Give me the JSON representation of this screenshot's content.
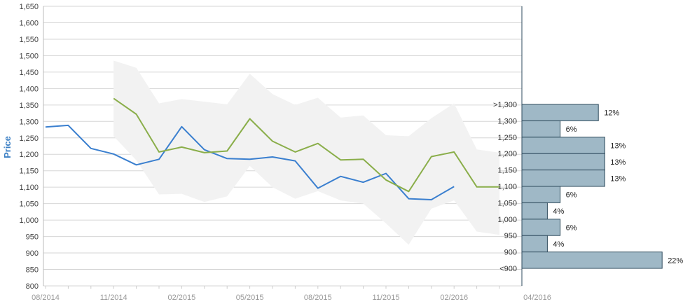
{
  "chart_data": {
    "type": "line",
    "ylabel": "Price",
    "ylim": [
      800,
      1650
    ],
    "y_ticks": [
      "800",
      "850",
      "900",
      "950",
      "1,000",
      "1,050",
      "1,100",
      "1,150",
      "1,200",
      "1,250",
      "1,300",
      "1,350",
      "1,400",
      "1,450",
      "1,500",
      "1,550",
      "1,600",
      "1,650"
    ],
    "x_labels": [
      "08/2014",
      "11/2014",
      "02/2015",
      "05/2015",
      "08/2015",
      "11/2015",
      "02/2016",
      "04/2016"
    ],
    "grid": true,
    "colors": {
      "series_a": "#3a7fcf",
      "series_b": "#8aae4a",
      "band": "#f2f2f2",
      "bars": "#9fb8c6",
      "bar_stroke": "#2e4a5c",
      "grid": "#d6d6d6"
    },
    "series": [
      {
        "color": "#3a7fcf",
        "points": [
          [
            "2014-08",
            1283
          ],
          [
            "2014-09",
            1288
          ],
          [
            "2014-10",
            1218
          ],
          [
            "2014-11",
            1201
          ],
          [
            "2014-12",
            1168
          ],
          [
            "2015-01",
            1185
          ],
          [
            "2015-02",
            1284
          ],
          [
            "2015-03",
            1214
          ],
          [
            "2015-04",
            1187
          ],
          [
            "2015-05",
            1185
          ],
          [
            "2015-06",
            1192
          ],
          [
            "2015-07",
            1180
          ],
          [
            "2015-08",
            1097
          ],
          [
            "2015-09",
            1133
          ],
          [
            "2015-10",
            1115
          ],
          [
            "2015-11",
            1142
          ],
          [
            "2015-12",
            1065
          ],
          [
            "2016-01",
            1062
          ],
          [
            "2016-02",
            1102
          ]
        ]
      },
      {
        "color": "#8aae4a",
        "points": [
          [
            "2014-11",
            1370
          ],
          [
            "2014-12",
            1322
          ],
          [
            "2015-01",
            1207
          ],
          [
            "2015-02",
            1222
          ],
          [
            "2015-03",
            1205
          ],
          [
            "2015-04",
            1210
          ],
          [
            "2015-05",
            1308
          ],
          [
            "2015-06",
            1240
          ],
          [
            "2015-07",
            1207
          ],
          [
            "2015-08",
            1233
          ],
          [
            "2015-09",
            1183
          ],
          [
            "2015-10",
            1185
          ],
          [
            "2015-11",
            1122
          ],
          [
            "2015-12",
            1087
          ],
          [
            "2016-01",
            1193
          ],
          [
            "2016-02",
            1207
          ],
          [
            "2016-03",
            1101
          ],
          [
            "2016-04",
            1101
          ]
        ]
      }
    ],
    "band": {
      "upper": [
        [
          "2014-11",
          1485
        ],
        [
          "2014-12",
          1463
        ],
        [
          "2015-01",
          1355
        ],
        [
          "2015-02",
          1368
        ],
        [
          "2015-03",
          1360
        ],
        [
          "2015-04",
          1352
        ],
        [
          "2015-05",
          1445
        ],
        [
          "2015-06",
          1383
        ],
        [
          "2015-07",
          1350
        ],
        [
          "2015-08",
          1372
        ],
        [
          "2015-09",
          1312
        ],
        [
          "2015-10",
          1318
        ],
        [
          "2015-11",
          1258
        ],
        [
          "2015-12",
          1255
        ],
        [
          "2016-01",
          1310
        ],
        [
          "2016-02",
          1355
        ],
        [
          "2016-03",
          1215
        ],
        [
          "2016-04",
          1205
        ]
      ],
      "lower": [
        [
          "2014-11",
          1255
        ],
        [
          "2014-12",
          1182
        ],
        [
          "2015-01",
          1078
        ],
        [
          "2015-02",
          1080
        ],
        [
          "2015-03",
          1055
        ],
        [
          "2015-04",
          1072
        ],
        [
          "2015-05",
          1165
        ],
        [
          "2015-06",
          1100
        ],
        [
          "2015-07",
          1065
        ],
        [
          "2015-08",
          1088
        ],
        [
          "2015-09",
          1060
        ],
        [
          "2015-10",
          1050
        ],
        [
          "2015-11",
          990
        ],
        [
          "2015-12",
          925
        ],
        [
          "2016-01",
          1035
        ],
        [
          "2016-02",
          1060
        ],
        [
          "2016-03",
          965
        ],
        [
          "2016-04",
          955
        ]
      ]
    },
    "distribution": [
      {
        "label": ">1,300",
        "percent": "12%",
        "value": 12
      },
      {
        "label": "1,300",
        "percent": "6%",
        "value": 6
      },
      {
        "label": "1,250",
        "percent": "13%",
        "value": 13
      },
      {
        "label": "1,200",
        "percent": "13%",
        "value": 13
      },
      {
        "label": "1,150",
        "percent": "13%",
        "value": 13
      },
      {
        "label": "1,100",
        "percent": "6%",
        "value": 6
      },
      {
        "label": "1,050",
        "percent": "4%",
        "value": 4
      },
      {
        "label": "1,000",
        "percent": "6%",
        "value": 6
      },
      {
        "label": "950",
        "percent": "4%",
        "value": 4
      },
      {
        "label": "900",
        "percent": "22%",
        "value": 22
      },
      {
        "label": "<900",
        "percent": "",
        "value": 0
      }
    ]
  }
}
